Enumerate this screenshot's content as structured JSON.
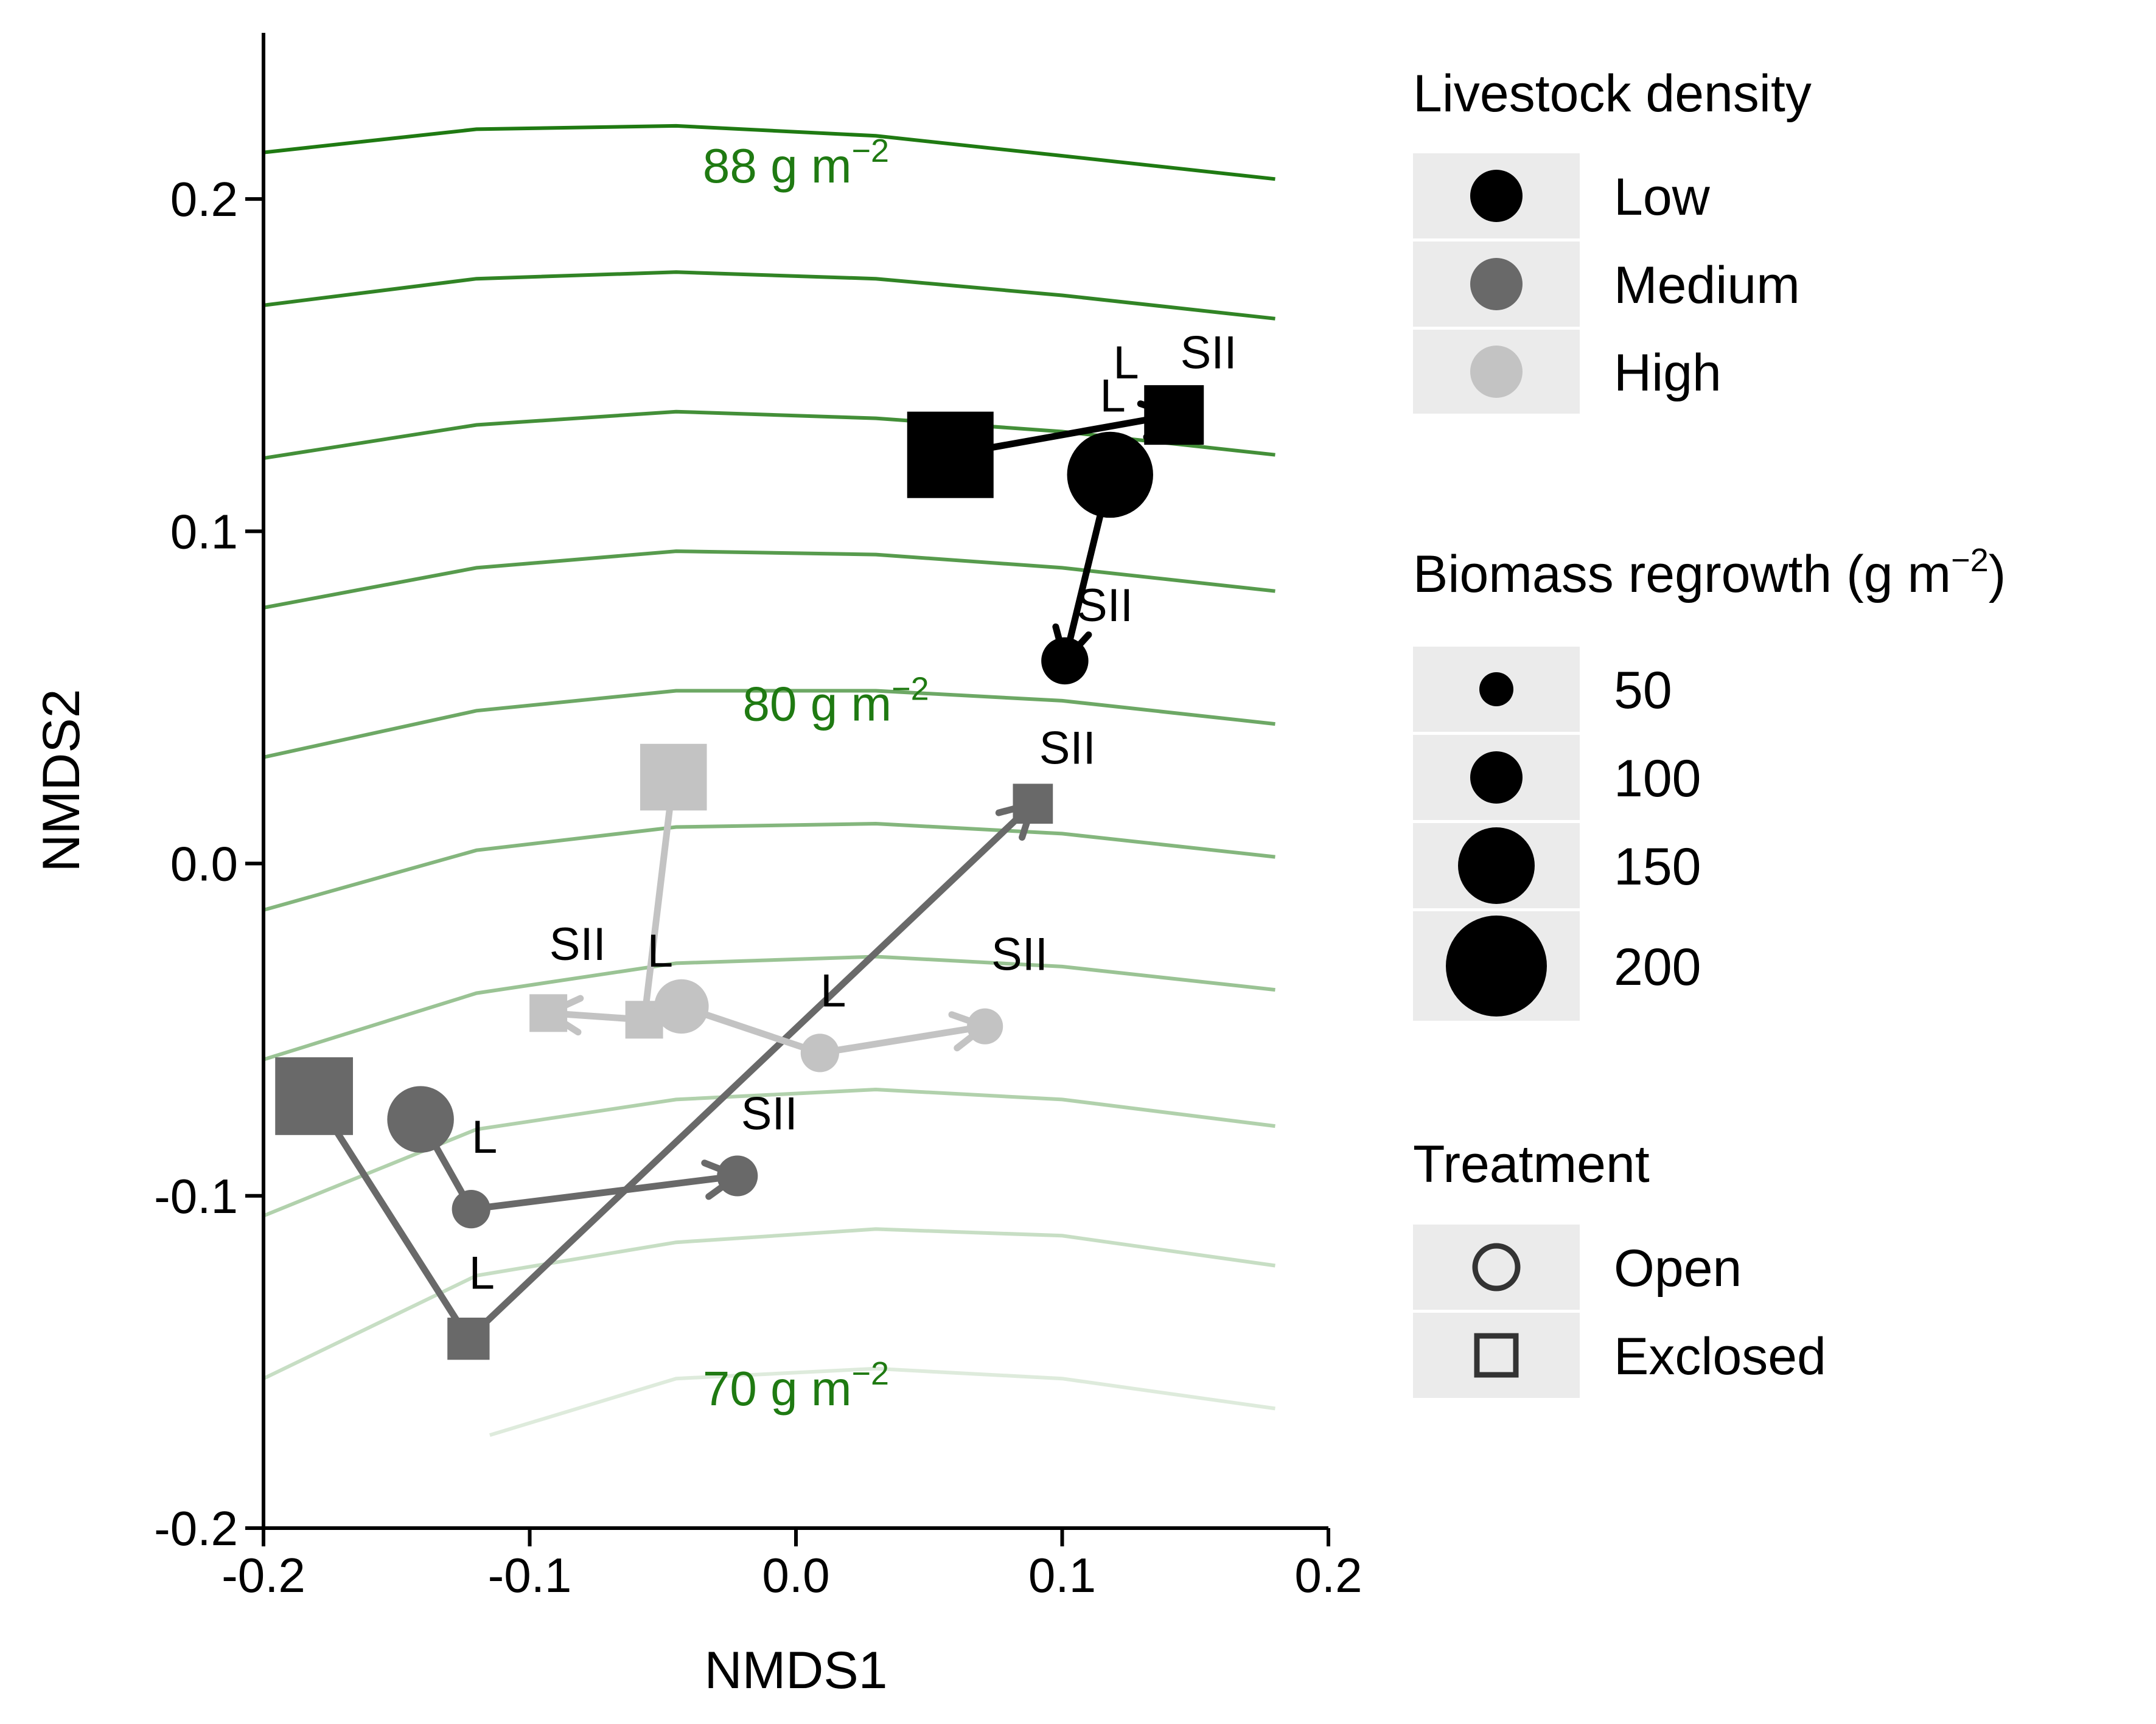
{
  "chart_data": {
    "type": "scatter",
    "xlabel": "NMDS1",
    "ylabel": "NMDS2",
    "xlim": [
      -0.2,
      0.2
    ],
    "ylim": [
      -0.2,
      0.25
    ],
    "xticks": [
      -0.2,
      -0.1,
      0.0,
      0.1,
      0.2
    ],
    "xtick_labels": [
      "-0.2",
      "-0.1",
      "0.0",
      "0.1",
      "0.2"
    ],
    "yticks": [
      -0.2,
      -0.1,
      0.0,
      0.1,
      0.2
    ],
    "ytick_labels": [
      "-0.2",
      "-0.1",
      "0.0",
      "0.1",
      "0.2"
    ],
    "grid": false,
    "contour_color": "#1f7a12",
    "contours": [
      {
        "opacity": 1.0,
        "x": [
          -0.2,
          -0.12,
          -0.045,
          0.03,
          0.1,
          0.18
        ],
        "y": [
          0.214,
          0.221,
          0.222,
          0.219,
          0.213,
          0.206
        ]
      },
      {
        "opacity": 0.92,
        "x": [
          -0.2,
          -0.12,
          -0.045,
          0.03,
          0.1,
          0.18
        ],
        "y": [
          0.168,
          0.176,
          0.178,
          0.176,
          0.171,
          0.164
        ]
      },
      {
        "opacity": 0.84,
        "x": [
          -0.2,
          -0.12,
          -0.045,
          0.03,
          0.1,
          0.18
        ],
        "y": [
          0.122,
          0.132,
          0.136,
          0.134,
          0.13,
          0.123
        ]
      },
      {
        "opacity": 0.75,
        "x": [
          -0.2,
          -0.12,
          -0.045,
          0.03,
          0.1,
          0.18
        ],
        "y": [
          0.077,
          0.089,
          0.094,
          0.093,
          0.089,
          0.082
        ]
      },
      {
        "opacity": 0.65,
        "x": [
          -0.2,
          -0.12,
          -0.045,
          0.03,
          0.1,
          0.18
        ],
        "y": [
          0.032,
          0.046,
          0.052,
          0.052,
          0.049,
          0.042
        ]
      },
      {
        "opacity": 0.55,
        "x": [
          -0.2,
          -0.12,
          -0.045,
          0.03,
          0.1,
          0.18
        ],
        "y": [
          -0.014,
          0.004,
          0.011,
          0.012,
          0.009,
          0.002
        ]
      },
      {
        "opacity": 0.45,
        "x": [
          -0.2,
          -0.12,
          -0.045,
          0.03,
          0.1,
          0.18
        ],
        "y": [
          -0.059,
          -0.039,
          -0.03,
          -0.028,
          -0.031,
          -0.038
        ]
      },
      {
        "opacity": 0.35,
        "x": [
          -0.2,
          -0.12,
          -0.045,
          0.03,
          0.1,
          0.18
        ],
        "y": [
          -0.106,
          -0.08,
          -0.071,
          -0.068,
          -0.071,
          -0.079
        ]
      },
      {
        "opacity": 0.25,
        "x": [
          -0.2,
          -0.12,
          -0.045,
          0.03,
          0.1,
          0.18
        ],
        "y": [
          -0.155,
          -0.124,
          -0.114,
          -0.11,
          -0.112,
          -0.121
        ]
      },
      {
        "opacity": 0.15,
        "x": [
          -0.115,
          -0.045,
          0.03,
          0.1,
          0.18
        ],
        "y": [
          -0.172,
          -0.155,
          -0.152,
          -0.155,
          -0.164
        ]
      }
    ],
    "contour_labels": [
      {
        "text": "88 g m",
        "sup": "−2",
        "x": 0.0,
        "y": 0.205
      },
      {
        "text": "80 g m",
        "sup": "−2",
        "x": 0.015,
        "y": 0.043
      },
      {
        "text": "70 g m",
        "sup": "−2",
        "x": 0.0,
        "y": -0.163
      }
    ],
    "series": [
      {
        "name": "Low",
        "color": "#000000",
        "points": [
          {
            "x": 0.058,
            "y": 0.123,
            "shape": "square",
            "biomass": 210
          },
          {
            "x": 0.142,
            "y": 0.135,
            "shape": "square",
            "biomass": 100
          },
          {
            "x": 0.118,
            "y": 0.117,
            "shape": "circle",
            "biomass": 200
          },
          {
            "x": 0.101,
            "y": 0.061,
            "shape": "circle",
            "biomass": 60
          }
        ],
        "arrows": [
          {
            "from": 0,
            "to": 1
          },
          {
            "from": 2,
            "to": 3
          }
        ]
      },
      {
        "name": "Medium",
        "color": "#696969",
        "points": [
          {
            "x": -0.181,
            "y": -0.07,
            "shape": "square",
            "biomass": 170
          },
          {
            "x": -0.123,
            "y": -0.143,
            "shape": "square",
            "biomass": 50
          },
          {
            "x": 0.089,
            "y": 0.018,
            "shape": "square",
            "biomass": 45
          },
          {
            "x": -0.141,
            "y": -0.077,
            "shape": "circle",
            "biomass": 120
          },
          {
            "x": -0.122,
            "y": -0.104,
            "shape": "circle",
            "biomass": 40
          },
          {
            "x": -0.022,
            "y": -0.094,
            "shape": "circle",
            "biomass": 45
          }
        ],
        "arrows": [
          {
            "from": 1,
            "to": 2
          },
          {
            "from": 4,
            "to": 5
          }
        ],
        "segments": [
          {
            "from": 0,
            "to": 1
          },
          {
            "from": 3,
            "to": 4
          }
        ]
      },
      {
        "name": "High",
        "color": "#c3c3c3",
        "points": [
          {
            "x": -0.046,
            "y": 0.026,
            "shape": "square",
            "biomass": 125
          },
          {
            "x": -0.057,
            "y": -0.047,
            "shape": "square",
            "biomass": 40
          },
          {
            "x": -0.093,
            "y": -0.045,
            "shape": "square",
            "biomass": 40
          },
          {
            "x": -0.043,
            "y": -0.043,
            "shape": "circle",
            "biomass": 80
          },
          {
            "x": 0.009,
            "y": -0.057,
            "shape": "circle",
            "biomass": 40
          },
          {
            "x": 0.071,
            "y": -0.049,
            "shape": "circle",
            "biomass": 35
          }
        ],
        "arrows": [
          {
            "from": 1,
            "to": 2
          },
          {
            "from": 4,
            "to": 5
          }
        ],
        "segments": [
          {
            "from": 0,
            "to": 1
          },
          {
            "from": 3,
            "to": 4
          }
        ]
      }
    ],
    "point_labels": [
      {
        "text": "L",
        "x": 0.124,
        "y": 0.146
      },
      {
        "text": "SII",
        "x": 0.155,
        "y": 0.149
      },
      {
        "text": "L",
        "x": 0.119,
        "y": 0.136
      },
      {
        "text": "SII",
        "x": 0.116,
        "y": 0.073
      },
      {
        "text": "SII",
        "x": 0.102,
        "y": 0.03
      },
      {
        "text": "SII",
        "x": -0.082,
        "y": -0.029
      },
      {
        "text": "L",
        "x": -0.051,
        "y": -0.031
      },
      {
        "text": "L",
        "x": 0.014,
        "y": -0.043
      },
      {
        "text": "SII",
        "x": 0.084,
        "y": -0.032
      },
      {
        "text": "SII",
        "x": -0.01,
        "y": -0.08
      },
      {
        "text": "L",
        "x": -0.117,
        "y": -0.087
      },
      {
        "text": "L",
        "x": -0.118,
        "y": -0.128
      }
    ],
    "legend": {
      "placement": "right",
      "density": {
        "title": "Livestock density",
        "items": [
          {
            "label": "Low",
            "color": "#000000"
          },
          {
            "label": "Medium",
            "color": "#696969"
          },
          {
            "label": "High",
            "color": "#c3c3c3"
          }
        ]
      },
      "biomass": {
        "title": "Biomass regrowth (g m",
        "title_sup": "−2",
        "title_end": ")",
        "items": [
          {
            "label": "50",
            "value": 50
          },
          {
            "label": "100",
            "value": 100
          },
          {
            "label": "150",
            "value": 150
          },
          {
            "label": "200",
            "value": 200
          }
        ]
      },
      "treatment": {
        "title": "Treatment",
        "items": [
          {
            "label": "Open",
            "shape": "circle"
          },
          {
            "label": "Exclosed",
            "shape": "square"
          }
        ]
      }
    }
  }
}
